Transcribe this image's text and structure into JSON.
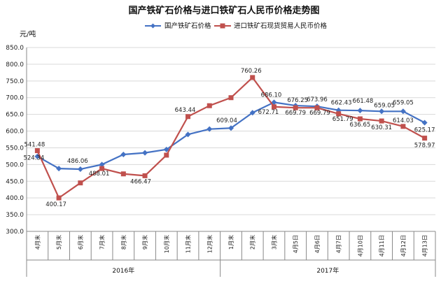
{
  "chart_data": {
    "type": "line",
    "title": "国产铁矿石价格与进口铁矿石人民币价格走势图",
    "ylabel": "元/吨",
    "ylim": [
      300,
      850
    ],
    "yticks": [
      "850.0",
      "800.0",
      "750.0",
      "700.0",
      "650.0",
      "600.0",
      "550.0",
      "500.0",
      "450.0",
      "400.0",
      "350.0",
      "300.0"
    ],
    "grid": true,
    "legend_position": "top",
    "categories": [
      "4月末",
      "5月末",
      "6月末",
      "7月末",
      "8月末",
      "9月末",
      "10月末",
      "11月末",
      "12月末",
      "1月末",
      "2月末",
      "3月末",
      "4月5日",
      "4月6日",
      "4月7日",
      "4月10日",
      "4月11日",
      "4月12日",
      "4月13日"
    ],
    "groups": [
      {
        "label": "2016年",
        "start": 0,
        "end": 8
      },
      {
        "label": "2017年",
        "start": 9,
        "end": 18
      }
    ],
    "series": [
      {
        "name": "国产铁矿石价格",
        "color": "#4472C4",
        "marker": "diamond",
        "values": [
          524.34,
          488.0,
          486.06,
          500.0,
          530.0,
          535.0,
          545.0,
          590.0,
          606.0,
          609.04,
          655.0,
          686.1,
          676.25,
          673.96,
          662.43,
          661.48,
          659.05,
          659.05,
          625.17
        ],
        "labels": [
          "524.34",
          null,
          "486.06",
          null,
          null,
          null,
          null,
          null,
          null,
          "609.04",
          null,
          "686.10",
          "676.25",
          "673.96",
          "662.43",
          "661.48",
          "659.05",
          "659.05",
          "625.17"
        ]
      },
      {
        "name": "进口铁矿石现货贸易人民币价格",
        "color": "#C0504D",
        "marker": "square",
        "values": [
          541.48,
          400.17,
          445.0,
          488.01,
          472.0,
          466.47,
          528.0,
          643.44,
          676.0,
          700.0,
          760.26,
          672.71,
          669.79,
          669.79,
          651.79,
          636.65,
          630.31,
          614.03,
          578.97
        ],
        "labels": [
          "541.48",
          "400.17",
          null,
          "488.01",
          null,
          "466.47",
          null,
          "643.44",
          null,
          null,
          "760.26",
          "672.71",
          "669.79",
          "669.79",
          "651.79",
          "636.65",
          "630.31",
          "614.03",
          "578.97"
        ]
      }
    ]
  }
}
